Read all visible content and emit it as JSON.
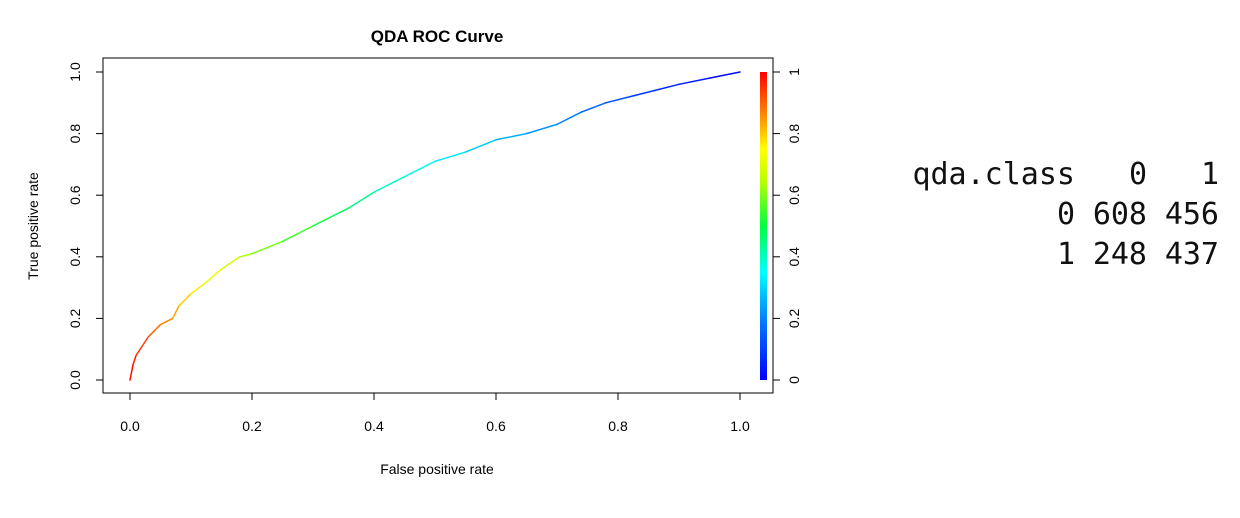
{
  "chart_data": {
    "type": "line",
    "title": "QDA ROC Curve",
    "xlabel": "False positive rate",
    "ylabel": "True positive rate",
    "xlim": [
      0,
      1
    ],
    "ylim": [
      0,
      1
    ],
    "x_ticks": [
      "0.0",
      "0.2",
      "0.4",
      "0.6",
      "0.8",
      "1.0"
    ],
    "y_ticks": [
      "0.0",
      "0.2",
      "0.4",
      "0.6",
      "0.8",
      "1.0"
    ],
    "colorbar": {
      "label_range": [
        0,
        1
      ],
      "ticks": [
        "0",
        "0.2",
        "0.4",
        "0.6",
        "0.8",
        "1"
      ],
      "colormap": "rainbow (blue at 0, red at 1)"
    },
    "series": [
      {
        "x": [
          0.0,
          0.005,
          0.01,
          0.02,
          0.03,
          0.04,
          0.05,
          0.07,
          0.08,
          0.1,
          0.12,
          0.15,
          0.18,
          0.2,
          0.25,
          0.3,
          0.33,
          0.36,
          0.4,
          0.45,
          0.5,
          0.55,
          0.6,
          0.65,
          0.7,
          0.74,
          0.78,
          0.82,
          0.86,
          0.9,
          0.95,
          1.0
        ],
        "y": [
          0.0,
          0.05,
          0.08,
          0.11,
          0.14,
          0.16,
          0.18,
          0.2,
          0.24,
          0.28,
          0.31,
          0.36,
          0.4,
          0.41,
          0.45,
          0.5,
          0.53,
          0.56,
          0.61,
          0.66,
          0.71,
          0.74,
          0.78,
          0.8,
          0.83,
          0.87,
          0.9,
          0.92,
          0.94,
          0.96,
          0.98,
          1.0
        ],
        "cutoff": [
          1.0,
          0.98,
          0.96,
          0.94,
          0.92,
          0.9,
          0.88,
          0.85,
          0.82,
          0.78,
          0.75,
          0.7,
          0.65,
          0.62,
          0.57,
          0.52,
          0.49,
          0.46,
          0.42,
          0.38,
          0.34,
          0.31,
          0.27,
          0.24,
          0.21,
          0.18,
          0.14,
          0.11,
          0.08,
          0.05,
          0.03,
          0.0
        ]
      }
    ]
  },
  "confusion_table": {
    "header": [
      "qda.class",
      "0",
      "1"
    ],
    "rows": [
      [
        "0",
        "608",
        "456"
      ],
      [
        "1",
        "248",
        "437"
      ]
    ]
  }
}
